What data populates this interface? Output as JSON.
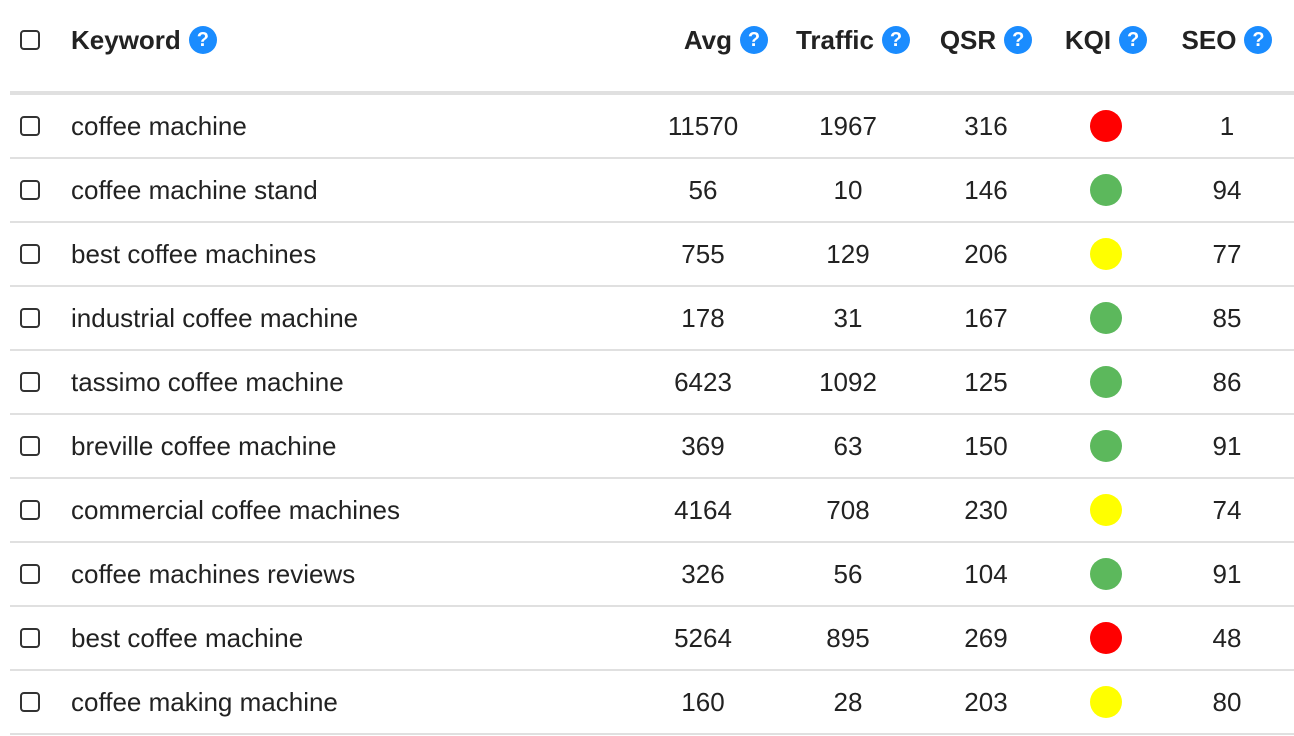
{
  "header": {
    "keyword": "Keyword",
    "avg": "Avg",
    "traffic": "Traffic",
    "qsr": "QSR",
    "kqi": "KQI",
    "seo": "SEO",
    "help_glyph": "?"
  },
  "colors": {
    "red": "#ff0000",
    "green": "#5cb85c",
    "yellow": "#ffff00",
    "help_blue": "#1a8cff"
  },
  "rows": [
    {
      "keyword": "coffee machine",
      "avg": "11570",
      "traffic": "1967",
      "qsr": "316",
      "kqi": "red",
      "seo": "1"
    },
    {
      "keyword": "coffee machine stand",
      "avg": "56",
      "traffic": "10",
      "qsr": "146",
      "kqi": "green",
      "seo": "94"
    },
    {
      "keyword": "best coffee machines",
      "avg": "755",
      "traffic": "129",
      "qsr": "206",
      "kqi": "yellow",
      "seo": "77"
    },
    {
      "keyword": "industrial coffee machine",
      "avg": "178",
      "traffic": "31",
      "qsr": "167",
      "kqi": "green",
      "seo": "85"
    },
    {
      "keyword": "tassimo coffee machine",
      "avg": "6423",
      "traffic": "1092",
      "qsr": "125",
      "kqi": "green",
      "seo": "86"
    },
    {
      "keyword": "breville coffee machine",
      "avg": "369",
      "traffic": "63",
      "qsr": "150",
      "kqi": "green",
      "seo": "91"
    },
    {
      "keyword": "commercial coffee machines",
      "avg": "4164",
      "traffic": "708",
      "qsr": "230",
      "kqi": "yellow",
      "seo": "74"
    },
    {
      "keyword": "coffee machines reviews",
      "avg": "326",
      "traffic": "56",
      "qsr": "104",
      "kqi": "green",
      "seo": "91"
    },
    {
      "keyword": "best coffee machine",
      "avg": "5264",
      "traffic": "895",
      "qsr": "269",
      "kqi": "red",
      "seo": "48"
    },
    {
      "keyword": "coffee making machine",
      "avg": "160",
      "traffic": "28",
      "qsr": "203",
      "kqi": "yellow",
      "seo": "80"
    }
  ]
}
